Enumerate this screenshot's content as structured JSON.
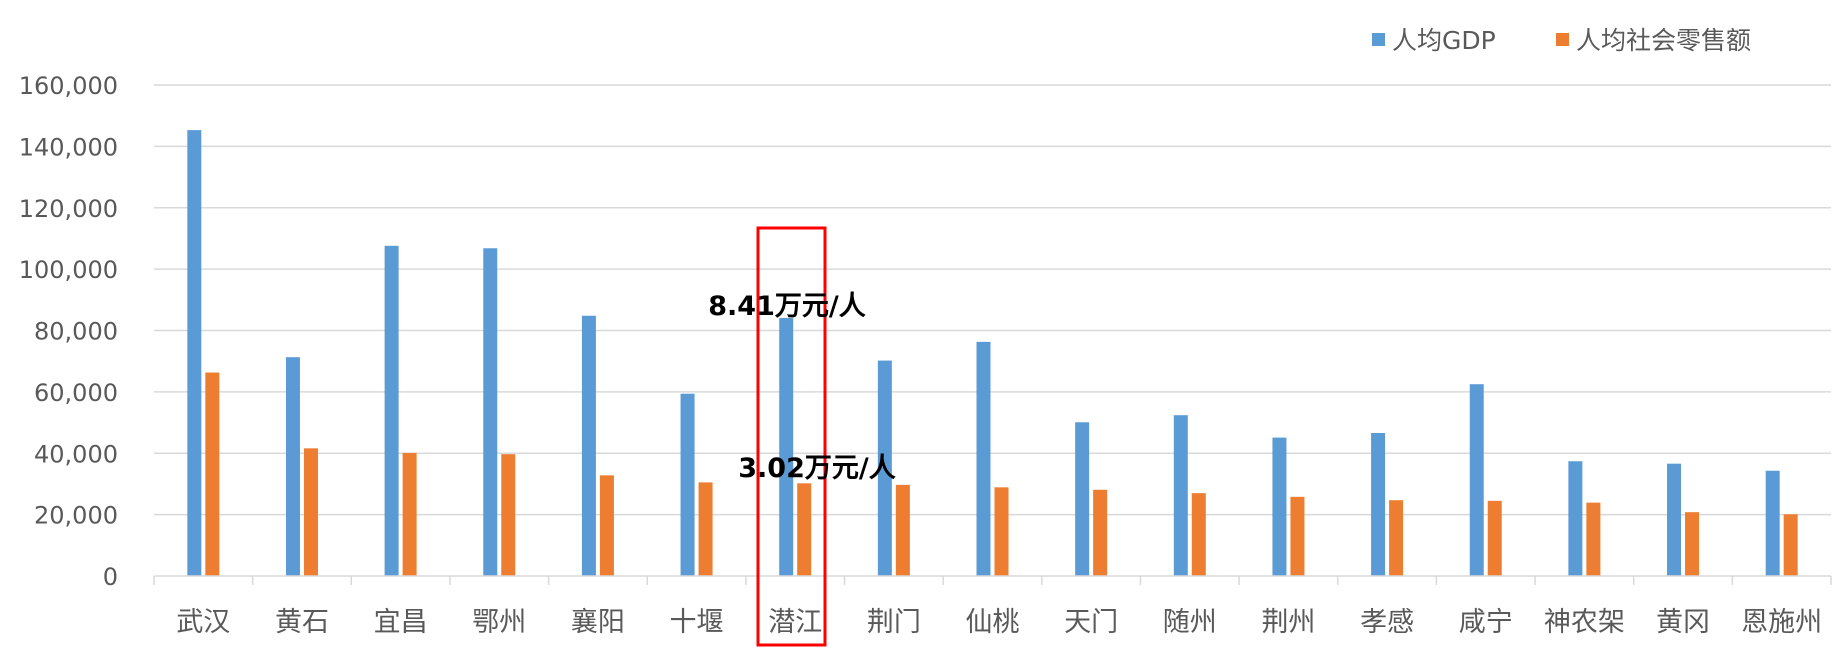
{
  "chart_data": {
    "type": "bar",
    "categories": [
      "武汉",
      "黄石",
      "宜昌",
      "鄂州",
      "襄阳",
      "十堰",
      "潜江",
      "荆门",
      "仙桃",
      "天门",
      "随州",
      "荆州",
      "孝感",
      "咸宁",
      "神农架",
      "黄冈",
      "恩施州"
    ],
    "series": [
      {
        "name": "人均GDP",
        "color": "#5B9BD5",
        "values": [
          145300,
          71300,
          107600,
          106800,
          84800,
          59400,
          84100,
          70200,
          76300,
          50100,
          52400,
          45100,
          46600,
          62500,
          37400,
          36600,
          34300
        ]
      },
      {
        "name": "人均社会零售额",
        "color": "#ED7D31",
        "values": [
          66300,
          41600,
          40100,
          39700,
          32800,
          30500,
          30200,
          29700,
          28900,
          28100,
          27000,
          25800,
          24700,
          24500,
          23900,
          20800,
          20100
        ]
      }
    ],
    "ylim": [
      0,
      160000
    ],
    "yticks": [
      "0",
      "20,000",
      "40,000",
      "60,000",
      "80,000",
      "100,000",
      "120,000",
      "140,000",
      "160,000"
    ],
    "grid": true,
    "legend_position": "top-right",
    "annotations": [
      {
        "text": "8.41万元/人",
        "category": "潜江",
        "series": "人均GDP"
      },
      {
        "text": "3.02万元/人",
        "category": "潜江",
        "series": "人均社会零售额"
      }
    ],
    "highlight": {
      "category": "潜江",
      "color": "#FF0000"
    }
  }
}
